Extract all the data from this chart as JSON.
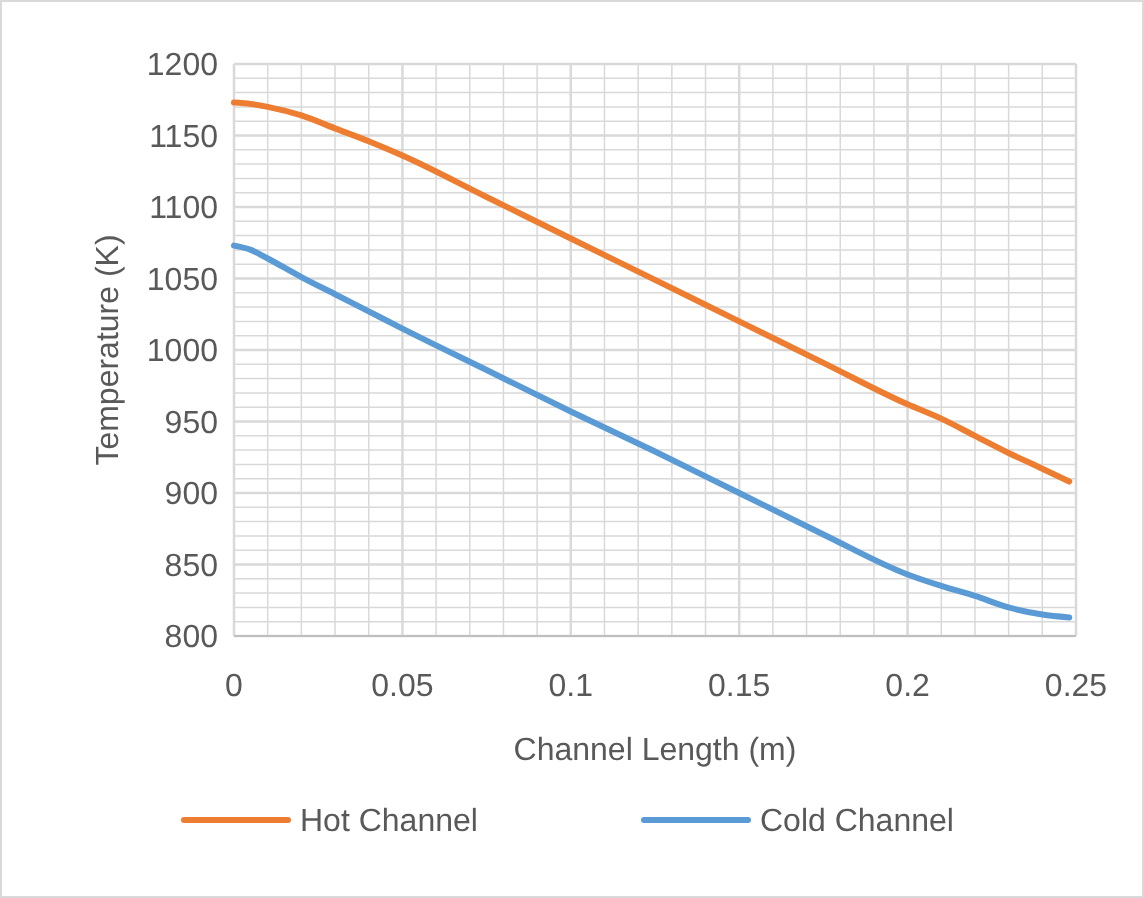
{
  "chart_data": {
    "type": "line",
    "xlabel": "Channel Length (m)",
    "ylabel": "Temperature (K)",
    "xlim": [
      0,
      0.25
    ],
    "xticks": [
      0,
      {
        "value": 0.01,
        "label": null
      },
      {
        "value": 0.02,
        "label": null
      },
      {
        "value": 0.03,
        "label": null
      },
      {
        "value": 0.04,
        "label": null
      },
      {
        "value": 0.05,
        "label": "0.05"
      },
      {
        "value": 0.06,
        "label": null
      },
      {
        "value": 0.07,
        "label": null
      },
      {
        "value": 0.08,
        "label": null
      },
      {
        "value": 0.09,
        "label": null
      },
      0.1,
      {
        "value": 0.11,
        "label": null
      },
      {
        "value": 0.12,
        "label": null
      },
      {
        "value": 0.13,
        "label": null
      },
      {
        "value": 0.14,
        "label": null
      },
      0.15,
      {
        "value": 0.16,
        "label": null
      },
      {
        "value": 0.17,
        "label": null
      },
      {
        "value": 0.18,
        "label": null
      },
      {
        "value": 0.19,
        "label": null
      },
      0.2,
      {
        "value": 0.21,
        "label": null
      },
      {
        "value": 0.22,
        "label": null
      },
      {
        "value": 0.23,
        "label": null
      },
      {
        "value": 0.24,
        "label": null
      },
      0.25
    ],
    "ylim": [
      800,
      1200
    ],
    "yticks": [
      800,
      {
        "value": 810,
        "label": null
      },
      {
        "value": 820,
        "label": null
      },
      {
        "value": 830,
        "label": null
      },
      {
        "value": 840,
        "label": null
      },
      850,
      {
        "value": 860,
        "label": null
      },
      {
        "value": 870,
        "label": null
      },
      {
        "value": 880,
        "label": null
      },
      {
        "value": 890,
        "label": null
      },
      900,
      {
        "value": 910,
        "label": null
      },
      {
        "value": 920,
        "label": null
      },
      {
        "value": 930,
        "label": null
      },
      {
        "value": 940,
        "label": null
      },
      950,
      {
        "value": 960,
        "label": null
      },
      {
        "value": 970,
        "label": null
      },
      {
        "value": 980,
        "label": null
      },
      {
        "value": 990,
        "label": null
      },
      1000,
      {
        "value": 1010,
        "label": null
      },
      {
        "value": 1020,
        "label": null
      },
      {
        "value": 1030,
        "label": null
      },
      {
        "value": 1040,
        "label": null
      },
      1050,
      {
        "value": 1060,
        "label": null
      },
      {
        "value": 1070,
        "label": null
      },
      {
        "value": 1080,
        "label": null
      },
      {
        "value": 1090,
        "label": null
      },
      1100,
      {
        "value": 1110,
        "label": null
      },
      {
        "value": 1120,
        "label": null
      },
      {
        "value": 1130,
        "label": null
      },
      {
        "value": 1140,
        "label": null
      },
      1150,
      {
        "value": 1160,
        "label": null
      },
      {
        "value": 1170,
        "label": null
      },
      {
        "value": 1180,
        "label": null
      },
      {
        "value": 1190,
        "label": null
      },
      1200
    ],
    "grid": true,
    "legend": "bottom",
    "marker": "none",
    "line_style": "solid",
    "x": [
      0,
      0.005,
      0.01,
      0.02,
      0.03,
      0.04,
      0.05,
      0.075,
      0.1,
      0.125,
      0.15,
      0.175,
      0.2,
      0.21,
      0.22,
      0.23,
      0.24,
      0.248
    ],
    "series": [
      {
        "name": "Hot Channel",
        "color": "#ed7d31",
        "values": [
          1173,
          1172,
          1170,
          1164,
          1155,
          1146,
          1136,
          1107,
          1078,
          1049,
          1020,
          991,
          962,
          952,
          940,
          928,
          917,
          908
        ]
      },
      {
        "name": "Cold Channel",
        "color": "#5b9bd5",
        "values": [
          1073,
          1070,
          1064,
          1051,
          1039,
          1027,
          1015,
          986,
          957,
          929,
          900,
          871,
          843,
          835,
          828,
          820,
          815,
          813
        ]
      }
    ]
  }
}
